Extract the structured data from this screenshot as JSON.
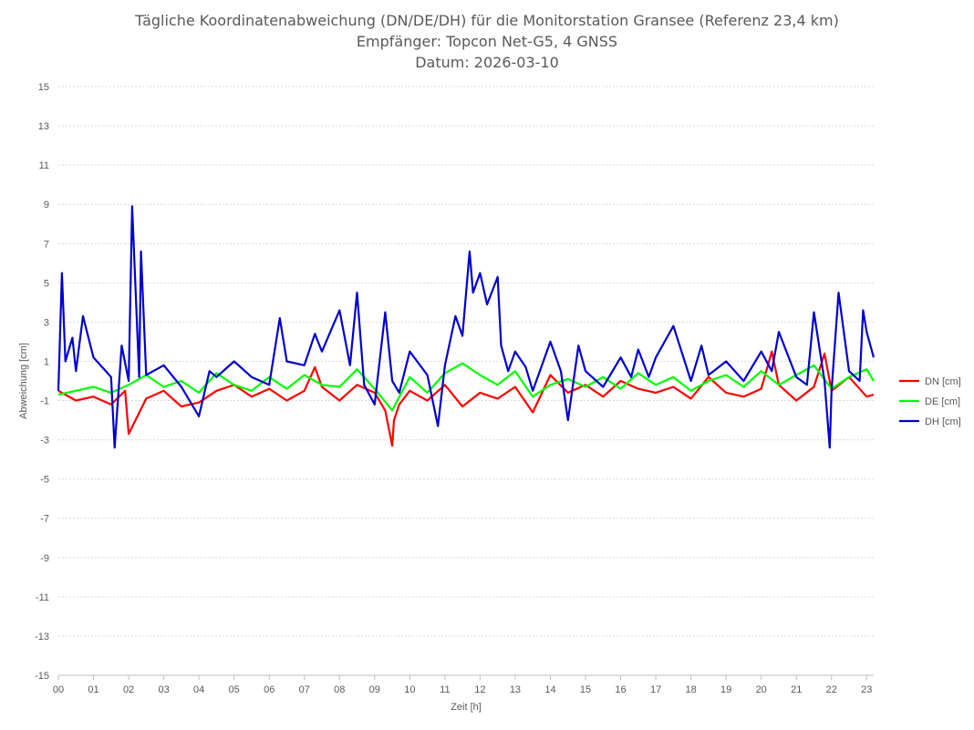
{
  "chart_data": {
    "type": "line",
    "title": [
      "Tägliche Koordinatenabweichung (DN/DE/DH) für die Monitorstation Gransee (Referenz 23,4 km)",
      "Empfänger: Topcon Net-G5, 4 GNSS",
      "Datum: 2026-03-10"
    ],
    "xlabel": "Zeit [h]",
    "ylabel": "Abweichung [cm]",
    "xlim": [
      0,
      23.2
    ],
    "ylim": [
      -15,
      15
    ],
    "x_ticks": [
      "00",
      "01",
      "02",
      "03",
      "04",
      "05",
      "06",
      "07",
      "08",
      "09",
      "10",
      "11",
      "12",
      "13",
      "14",
      "15",
      "16",
      "17",
      "18",
      "19",
      "20",
      "21",
      "22",
      "23"
    ],
    "y_ticks": [
      "15",
      "13",
      "11",
      "9",
      "7",
      "5",
      "3",
      "1",
      "-1",
      "-3",
      "-5",
      "-7",
      "-9",
      "-11",
      "-13",
      "-15"
    ],
    "legend_position": "right",
    "series": [
      {
        "name": "DN [cm]",
        "color": "#ff0000",
        "x": [
          0,
          0.5,
          1,
          1.5,
          1.9,
          2.0,
          2.5,
          3,
          3.5,
          4,
          4.5,
          5,
          5.5,
          6,
          6.5,
          7,
          7.3,
          7.5,
          8,
          8.5,
          9,
          9.3,
          9.5,
          9.55,
          9.7,
          10,
          10.5,
          11,
          11.5,
          12,
          12.5,
          13,
          13.5,
          14,
          14.5,
          15,
          15.5,
          16,
          16.5,
          17,
          17.5,
          18,
          18.5,
          19,
          19.5,
          20,
          20.3,
          20.5,
          21,
          21.5,
          21.8,
          22,
          22.5,
          23,
          23.2
        ],
        "values": [
          -0.5,
          -1.0,
          -0.8,
          -1.2,
          -0.5,
          -2.7,
          -0.9,
          -0.5,
          -1.3,
          -1.1,
          -0.5,
          -0.2,
          -0.8,
          -0.4,
          -1.0,
          -0.5,
          0.7,
          -0.3,
          -1.0,
          -0.2,
          -0.6,
          -1.5,
          -3.3,
          -2.0,
          -1.2,
          -0.5,
          -1.0,
          -0.2,
          -1.3,
          -0.6,
          -0.9,
          -0.3,
          -1.6,
          0.3,
          -0.6,
          -0.2,
          -0.8,
          0.0,
          -0.4,
          -0.6,
          -0.3,
          -0.9,
          0.2,
          -0.6,
          -0.8,
          -0.4,
          1.5,
          -0.2,
          -1.0,
          -0.3,
          1.4,
          -0.5,
          0.2,
          -0.8,
          -0.7
        ]
      },
      {
        "name": "DE [cm]",
        "color": "#00ff00",
        "x": [
          0,
          0.5,
          1,
          1.5,
          2,
          2.5,
          3,
          3.5,
          4,
          4.5,
          5,
          5.5,
          6,
          6.5,
          7,
          7.5,
          8,
          8.5,
          9,
          9.5,
          10,
          10.5,
          11,
          11.5,
          12,
          12.5,
          13,
          13.5,
          14,
          14.5,
          15,
          15.5,
          16,
          16.5,
          17,
          17.5,
          18,
          18.5,
          19,
          19.5,
          20,
          20.5,
          21,
          21.5,
          22,
          22.5,
          23,
          23.2
        ],
        "values": [
          -0.7,
          -0.5,
          -0.3,
          -0.6,
          -0.2,
          0.3,
          -0.3,
          0.0,
          -0.6,
          0.4,
          -0.2,
          -0.5,
          0.2,
          -0.4,
          0.3,
          -0.2,
          -0.3,
          0.6,
          -0.4,
          -1.5,
          0.2,
          -0.6,
          0.4,
          0.9,
          0.3,
          -0.2,
          0.5,
          -0.8,
          -0.2,
          0.1,
          -0.3,
          0.2,
          -0.4,
          0.4,
          -0.2,
          0.2,
          -0.5,
          0.0,
          0.3,
          -0.3,
          0.5,
          -0.2,
          0.3,
          0.8,
          -0.4,
          0.2,
          0.6,
          0.0
        ]
      },
      {
        "name": "DH [cm]",
        "color": "#0000cc",
        "x": [
          0,
          0.1,
          0.2,
          0.4,
          0.5,
          0.7,
          1.0,
          1.3,
          1.5,
          1.6,
          1.8,
          2.0,
          2.1,
          2.3,
          2.35,
          2.5,
          3,
          3.5,
          4,
          4.3,
          4.5,
          5,
          5.5,
          6,
          6.3,
          6.5,
          7,
          7.3,
          7.5,
          8,
          8.3,
          8.5,
          8.7,
          9,
          9.3,
          9.5,
          9.7,
          10,
          10.5,
          10.8,
          11,
          11.3,
          11.5,
          11.7,
          11.8,
          12,
          12.2,
          12.5,
          12.6,
          12.8,
          13,
          13.3,
          13.5,
          14,
          14.3,
          14.5,
          14.8,
          15,
          15.5,
          16,
          16.3,
          16.5,
          16.8,
          17,
          17.5,
          18,
          18.3,
          18.5,
          19,
          19.5,
          20,
          20.3,
          20.5,
          21,
          21.3,
          21.5,
          21.8,
          21.95,
          22,
          22.2,
          22.5,
          22.8,
          22.9,
          23,
          23.2
        ],
        "values": [
          -0.5,
          5.5,
          1.0,
          2.2,
          0.5,
          3.3,
          1.2,
          0.6,
          0.2,
          -3.4,
          1.8,
          0.0,
          8.9,
          0.2,
          6.6,
          0.3,
          0.8,
          -0.3,
          -1.8,
          0.5,
          0.2,
          1.0,
          0.2,
          -0.2,
          3.2,
          1.0,
          0.8,
          2.4,
          1.5,
          3.6,
          0.8,
          4.5,
          -0.2,
          -1.2,
          3.5,
          0.0,
          -0.6,
          1.5,
          0.3,
          -2.3,
          0.8,
          3.3,
          2.3,
          6.6,
          4.5,
          5.5,
          3.9,
          5.3,
          1.8,
          0.5,
          1.5,
          0.7,
          -0.5,
          2.0,
          0.5,
          -2.0,
          1.8,
          0.5,
          -0.3,
          1.2,
          0.2,
          1.6,
          0.2,
          1.2,
          2.8,
          0.0,
          1.8,
          0.3,
          1.0,
          0.0,
          1.5,
          0.5,
          2.5,
          0.2,
          -0.2,
          3.5,
          0.0,
          -3.4,
          -0.5,
          4.5,
          0.5,
          0.0,
          3.6,
          2.5,
          1.2
        ]
      }
    ]
  }
}
